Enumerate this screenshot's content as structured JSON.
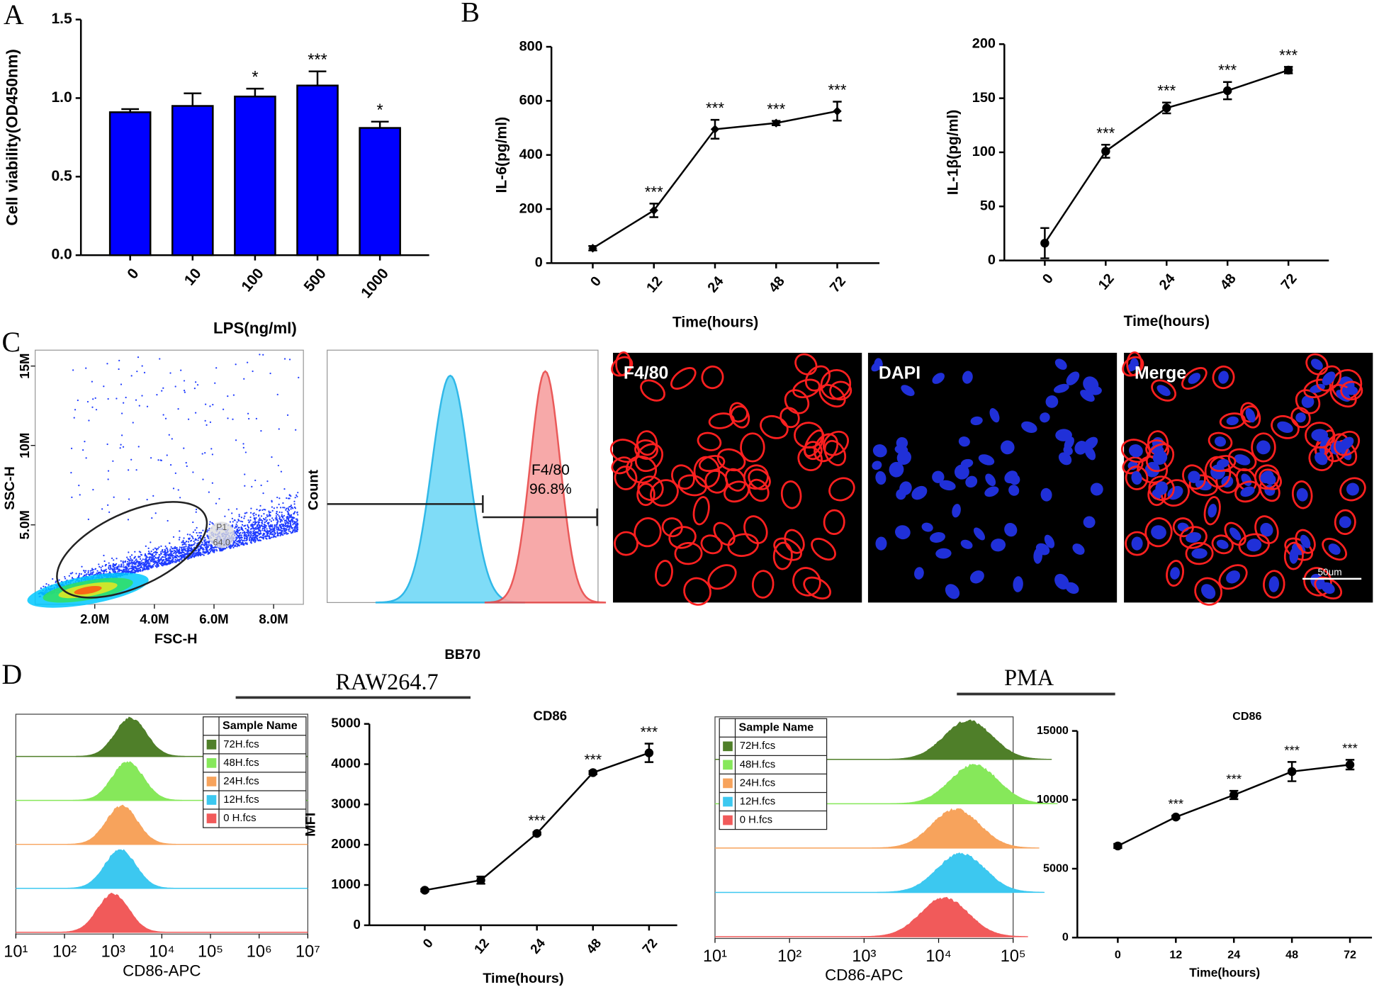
{
  "panel_labels": [
    "A",
    "B",
    "C",
    "D"
  ],
  "group_labels": [
    "RAW264.7",
    "PMA"
  ],
  "images": [
    {
      "label": "F4/80"
    },
    {
      "label": "DAPI"
    },
    {
      "label": "Merge",
      "scale_bar": "50um"
    }
  ],
  "chart_data": [
    {
      "type": "bar",
      "categories": [
        "0",
        "10",
        "100",
        "500",
        "1000"
      ],
      "values": [
        0.91,
        0.95,
        1.01,
        1.08,
        0.81
      ],
      "errors": [
        0.02,
        0.08,
        0.05,
        0.09,
        0.04
      ],
      "significance": [
        null,
        null,
        "*",
        "***",
        "*"
      ],
      "color": "#0000ff",
      "ylim": [
        0,
        1.5
      ],
      "yticks": [
        {
          "value": 0,
          "label": "0.0"
        },
        {
          "value": 0.5,
          "label": "0.5"
        },
        {
          "value": 1,
          "label": "1.0"
        },
        {
          "value": 1.5,
          "label": "1.5"
        }
      ],
      "ylabel": "Cell viability(OD450nm)",
      "xlabel": "LPS(ng/ml)"
    },
    {
      "type": "line",
      "marker": "diamond",
      "categories": [
        "0",
        "12",
        "24",
        "48",
        "72"
      ],
      "values": [
        55,
        195,
        495,
        518,
        562
      ],
      "errors": [
        8,
        25,
        35,
        8,
        35
      ],
      "significance": [
        null,
        "***",
        "***",
        "***",
        "***"
      ],
      "color": "#000000",
      "ylim": [
        0,
        800
      ],
      "yticks": [
        0,
        200,
        400,
        600,
        800
      ],
      "ylabel": "IL-6(pg/ml)",
      "xlabel": "Time(hours)"
    },
    {
      "type": "line",
      "marker": "circle",
      "categories": [
        "0",
        "12",
        "24",
        "48",
        "72"
      ],
      "values": [
        16,
        101,
        141,
        157,
        176
      ],
      "errors": [
        14,
        6,
        5,
        8,
        3
      ],
      "significance": [
        null,
        "***",
        "***",
        "***",
        "***"
      ],
      "color": "#000000",
      "ylim": [
        0,
        200
      ],
      "yticks": [
        0,
        50,
        100,
        150,
        200
      ],
      "ylabel": "IL-1β(pg/ml)",
      "xlabel": "Time(hours)"
    },
    {
      "type": "scatter-density",
      "xlabel": "FSC-H",
      "ylabel": "SSC-H",
      "xlim": [
        0,
        9000000
      ],
      "xticks": [
        {
          "value": 2000000,
          "label": "2.0M"
        },
        {
          "value": 4000000,
          "label": "4.0M"
        },
        {
          "value": 6000000,
          "label": "6.0M"
        },
        {
          "value": 8000000,
          "label": "8.0M"
        }
      ],
      "ylim": [
        0,
        16000000
      ],
      "yticks": [
        {
          "value": 5000000,
          "label": "5.0M"
        },
        {
          "value": 10000000,
          "label": "10M"
        },
        {
          "value": 15000000,
          "label": "15M"
        }
      ],
      "color": "#1f3cff",
      "gate": {
        "name": "P1",
        "value": 64,
        "value_label": "64.0"
      }
    },
    {
      "type": "histogram-gate",
      "xlabel": "BB70",
      "ylabel": "Count",
      "series": [
        {
          "color": "#7fdcf7"
        },
        {
          "color": "#f7a0a0"
        }
      ],
      "gate": {
        "name": "F4/80",
        "value": 96.8,
        "value_label": "96.8%"
      }
    },
    {
      "type": "histogram-overlay",
      "legend_title": "Sample Name",
      "xscale": "log",
      "xlim": [
        10,
        10000000
      ],
      "xticks": [
        {
          "value": 10,
          "label": "10¹"
        },
        {
          "value": 100,
          "label": "10²"
        },
        {
          "value": 1000,
          "label": "10³"
        },
        {
          "value": 10000,
          "label": "10⁴"
        },
        {
          "value": 100000,
          "label": "10⁵"
        },
        {
          "value": 1000000,
          "label": "10⁶"
        },
        {
          "value": 10000000,
          "label": "10⁷"
        }
      ],
      "xlabel": "CD86-APC",
      "series": [
        {
          "name": "72H.fcs",
          "color": "#4f7f29",
          "peak": 2300
        },
        {
          "name": "48H.fcs",
          "color": "#86e85a",
          "peak": 2000
        },
        {
          "name": "24H.fcs",
          "color": "#f7a35c",
          "peak": 1500
        },
        {
          "name": "12H.fcs",
          "color": "#3cc8f0",
          "peak": 1400
        },
        {
          "name": "0 H.fcs",
          "color": "#f15a5a",
          "peak": 1000
        }
      ]
    },
    {
      "type": "line",
      "marker": "circle",
      "title": "CD86",
      "categories": [
        "0",
        "12",
        "24",
        "48",
        "72"
      ],
      "values": [
        870,
        1120,
        2280,
        3790,
        4280
      ],
      "errors": [
        30,
        90,
        30,
        40,
        230
      ],
      "significance": [
        null,
        null,
        "***",
        "***",
        "***"
      ],
      "color": "#000000",
      "ylim": [
        0,
        5000
      ],
      "yticks": [
        0,
        1000,
        2000,
        3000,
        4000,
        5000
      ],
      "ylabel": "MFI",
      "xlabel": "Time(hours)"
    },
    {
      "type": "histogram-overlay",
      "legend_title": "Sample Name",
      "xscale": "log",
      "xlim": [
        10,
        100000
      ],
      "xticks": [
        {
          "value": 10,
          "label": "10¹"
        },
        {
          "value": 100,
          "label": "10²"
        },
        {
          "value": 1000,
          "label": "10³"
        },
        {
          "value": 10000,
          "label": "10⁴"
        },
        {
          "value": 100000,
          "label": "10⁵"
        }
      ],
      "xlabel": "CD86-APC",
      "series": [
        {
          "name": "72H.fcs",
          "color": "#4f7f29",
          "peak": 25000
        },
        {
          "name": "48H.fcs",
          "color": "#86e85a",
          "peak": 30000
        },
        {
          "name": "24H.fcs",
          "color": "#f7a35c",
          "peak": 17000
        },
        {
          "name": "12H.fcs",
          "color": "#3cc8f0",
          "peak": 20000
        },
        {
          "name": "0 H.fcs",
          "color": "#f15a5a",
          "peak": 12000
        }
      ]
    },
    {
      "type": "line",
      "marker": "circle",
      "title": "CD86",
      "categories": [
        "0",
        "12",
        "24",
        "48",
        "72"
      ],
      "values": [
        6650,
        8750,
        10350,
        12050,
        12550
      ],
      "errors": [
        150,
        100,
        300,
        700,
        350
      ],
      "significance": [
        null,
        "***",
        "***",
        "***",
        "***"
      ],
      "color": "#000000",
      "ylim": [
        0,
        15000
      ],
      "yticks": [
        0,
        5000,
        10000,
        15000
      ],
      "xlabel": "Time(hours)"
    }
  ]
}
